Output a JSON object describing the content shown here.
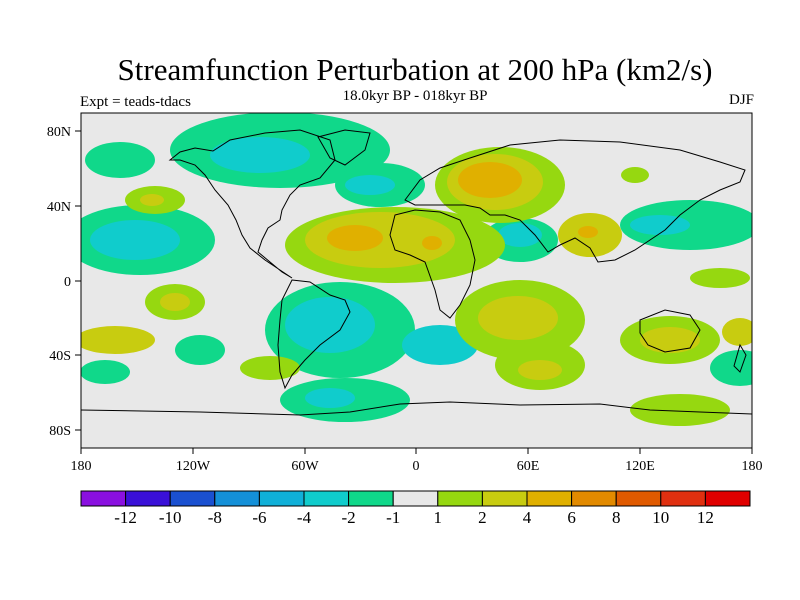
{
  "chart_data": {
    "type": "heatmap",
    "title": "Streamfunction Perturbation at 200 hPa (km2/s)",
    "subtitle": "18.0kyr BP - 018kyr BP",
    "left_label": "Expt = teads-tdacs",
    "right_label": "DJF",
    "x_ticks": [
      "180",
      "120W",
      "60W",
      "0",
      "60E",
      "120E",
      "180"
    ],
    "y_ticks": [
      "80N",
      "40N",
      "0",
      "40S",
      "80S"
    ],
    "colorbar": {
      "labels": [
        "-12",
        "-10",
        "-8",
        "-6",
        "-4",
        "-2",
        "-1",
        "1",
        "2",
        "4",
        "6",
        "8",
        "10",
        "12"
      ],
      "colors": [
        "#8a10e0",
        "#3a10d8",
        "#1a50d0",
        "#1490d8",
        "#10b0d8",
        "#10cccc",
        "#10d88a",
        "#e8e8e8",
        "#96d810",
        "#c8cc10",
        "#e0b000",
        "#e28a00",
        "#e05a00",
        "#e03010",
        "#e00000"
      ]
    }
  }
}
